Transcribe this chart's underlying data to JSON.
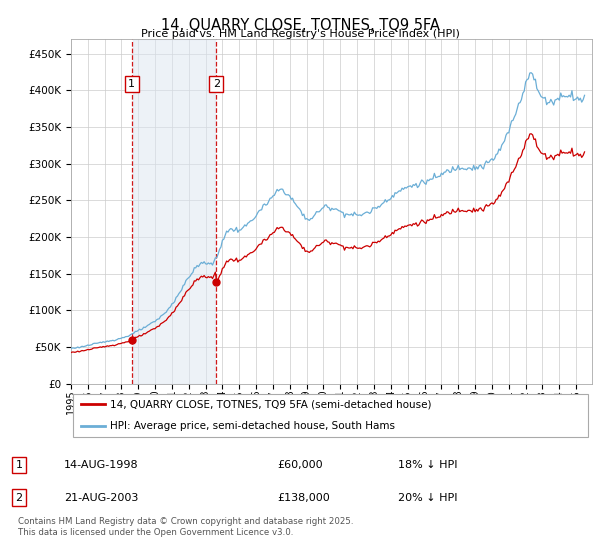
{
  "title": "14, QUARRY CLOSE, TOTNES, TQ9 5FA",
  "subtitle": "Price paid vs. HM Land Registry's House Price Index (HPI)",
  "sale1_date_str": "1998-08-14",
  "sale1_price": 60000,
  "sale1_text": "14-AUG-1998",
  "sale1_amount": "£60,000",
  "sale1_hpi": "18% ↓ HPI",
  "sale2_date_str": "2003-08-21",
  "sale2_price": 138000,
  "sale2_text": "21-AUG-2003",
  "sale2_amount": "£138,000",
  "sale2_hpi": "20% ↓ HPI",
  "legend1": "14, QUARRY CLOSE, TOTNES, TQ9 5FA (semi-detached house)",
  "legend2": "HPI: Average price, semi-detached house, South Hams",
  "footer": "Contains HM Land Registry data © Crown copyright and database right 2025.\nThis data is licensed under the Open Government Licence v3.0.",
  "property_color": "#cc0000",
  "hpi_color": "#6baed6",
  "shade_color": "#dce6f1",
  "dashed_color": "#cc0000",
  "ylim_max": 470000,
  "ylim_min": 0,
  "yticks": [
    0,
    50000,
    100000,
    150000,
    200000,
    250000,
    300000,
    350000,
    400000,
    450000
  ],
  "start_year": 1995,
  "end_year": 2025
}
